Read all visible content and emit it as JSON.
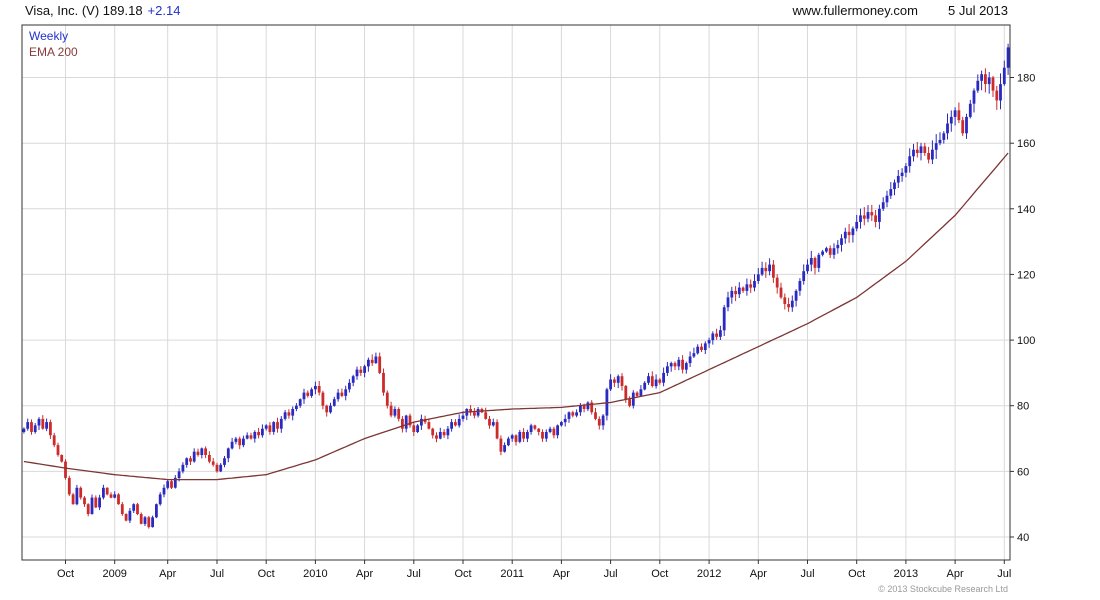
{
  "header": {
    "title_main": "Visa, Inc. (V) 189.18",
    "change": "+2.14",
    "website": "www.fullermoney.com",
    "date": "5 Jul 2013"
  },
  "legend": {
    "weekly": "Weekly",
    "ema": "EMA 200"
  },
  "footer": {
    "copyright": "© 2013 Stockcube Research Ltd"
  },
  "chart_data": {
    "type": "candlestick",
    "title": "Visa, Inc. (V) 189.18 +2.14",
    "interval": "Weekly",
    "overlay": "EMA 200",
    "last_price": 189.18,
    "change": 2.14,
    "y_axis": {
      "min": 33,
      "max": 196,
      "ticks": [
        40,
        60,
        80,
        100,
        120,
        140,
        160,
        180
      ]
    },
    "x_axis": {
      "tick_labels": [
        "Oct",
        "2009",
        "Apr",
        "Jul",
        "Oct",
        "2010",
        "Apr",
        "Jul",
        "Oct",
        "2011",
        "Apr",
        "Jul",
        "Oct",
        "2012",
        "Apr",
        "Jul",
        "Oct",
        "2013",
        "Apr",
        "Jul"
      ],
      "tick_week_indices": [
        11,
        24,
        38,
        51,
        64,
        77,
        90,
        103,
        116,
        129,
        142,
        155,
        168,
        181,
        194,
        207,
        220,
        233,
        246,
        259
      ]
    },
    "weekly_closes": [
      73,
      75,
      72,
      74,
      76,
      73,
      75,
      71,
      68,
      65,
      63,
      58,
      53,
      50,
      55,
      52,
      50,
      47,
      52,
      49,
      52,
      55,
      53,
      52,
      53,
      50,
      47,
      45,
      48,
      50,
      47,
      44,
      46,
      43,
      46,
      50,
      53,
      55,
      57,
      55,
      58,
      60,
      62,
      64,
      63,
      66,
      65,
      67,
      65,
      63,
      62,
      60,
      62,
      64,
      67,
      69,
      70,
      68,
      70,
      71,
      70,
      72,
      71,
      73,
      74,
      72,
      75,
      73,
      76,
      78,
      77,
      79,
      80,
      82,
      84,
      83,
      85,
      86,
      84,
      80,
      78,
      80,
      82,
      84,
      83,
      85,
      87,
      89,
      91,
      90,
      92,
      94,
      93,
      95,
      90,
      84,
      80,
      77,
      79,
      76,
      73,
      77,
      74,
      72,
      74,
      76,
      75,
      73,
      71,
      70,
      72,
      71,
      73,
      75,
      74,
      76,
      77,
      79,
      78,
      77,
      79,
      78,
      76,
      74,
      75,
      70,
      66,
      68,
      70,
      71,
      69,
      72,
      70,
      72,
      74,
      73,
      72,
      70,
      72,
      73,
      71,
      74,
      75,
      76,
      78,
      77,
      78,
      80,
      79,
      81,
      78,
      76,
      74,
      77,
      85,
      88,
      87,
      89,
      86,
      82,
      80,
      84,
      83,
      85,
      87,
      89,
      86,
      88,
      87,
      90,
      92,
      93,
      92,
      94,
      91,
      93,
      95,
      96,
      98,
      97,
      99,
      100,
      102,
      101,
      103,
      110,
      113,
      115,
      114,
      116,
      115,
      117,
      116,
      118,
      120,
      122,
      121,
      123,
      119,
      116,
      113,
      111,
      110,
      112,
      115,
      118,
      121,
      123,
      125,
      122,
      126,
      127,
      128,
      126,
      128,
      129,
      131,
      133,
      132,
      134,
      136,
      138,
      137,
      139,
      138,
      136,
      140,
      142,
      144,
      146,
      148,
      150,
      151,
      153,
      156,
      158,
      157,
      159,
      157,
      155,
      158,
      160,
      161,
      163,
      166,
      168,
      170,
      167,
      163,
      168,
      172,
      176,
      179,
      181,
      178,
      180,
      176,
      173,
      178,
      183,
      189.18
    ],
    "ema200_keypoints": [
      [
        0,
        63
      ],
      [
        11,
        61
      ],
      [
        24,
        59
      ],
      [
        38,
        57.5
      ],
      [
        51,
        57.5
      ],
      [
        64,
        59
      ],
      [
        77,
        63.5
      ],
      [
        90,
        70
      ],
      [
        103,
        75
      ],
      [
        116,
        78
      ],
      [
        129,
        79
      ],
      [
        142,
        79.5
      ],
      [
        155,
        81
      ],
      [
        168,
        84
      ],
      [
        181,
        91
      ],
      [
        194,
        98
      ],
      [
        207,
        105
      ],
      [
        220,
        113
      ],
      [
        233,
        124
      ],
      [
        246,
        138
      ],
      [
        260,
        157
      ]
    ],
    "colors": {
      "up": "#2a2ac0",
      "down": "#cc2b2b",
      "ema": "#7d3535",
      "grid": "#d9d9d9",
      "axis": "#333333",
      "text": "#111111"
    }
  }
}
